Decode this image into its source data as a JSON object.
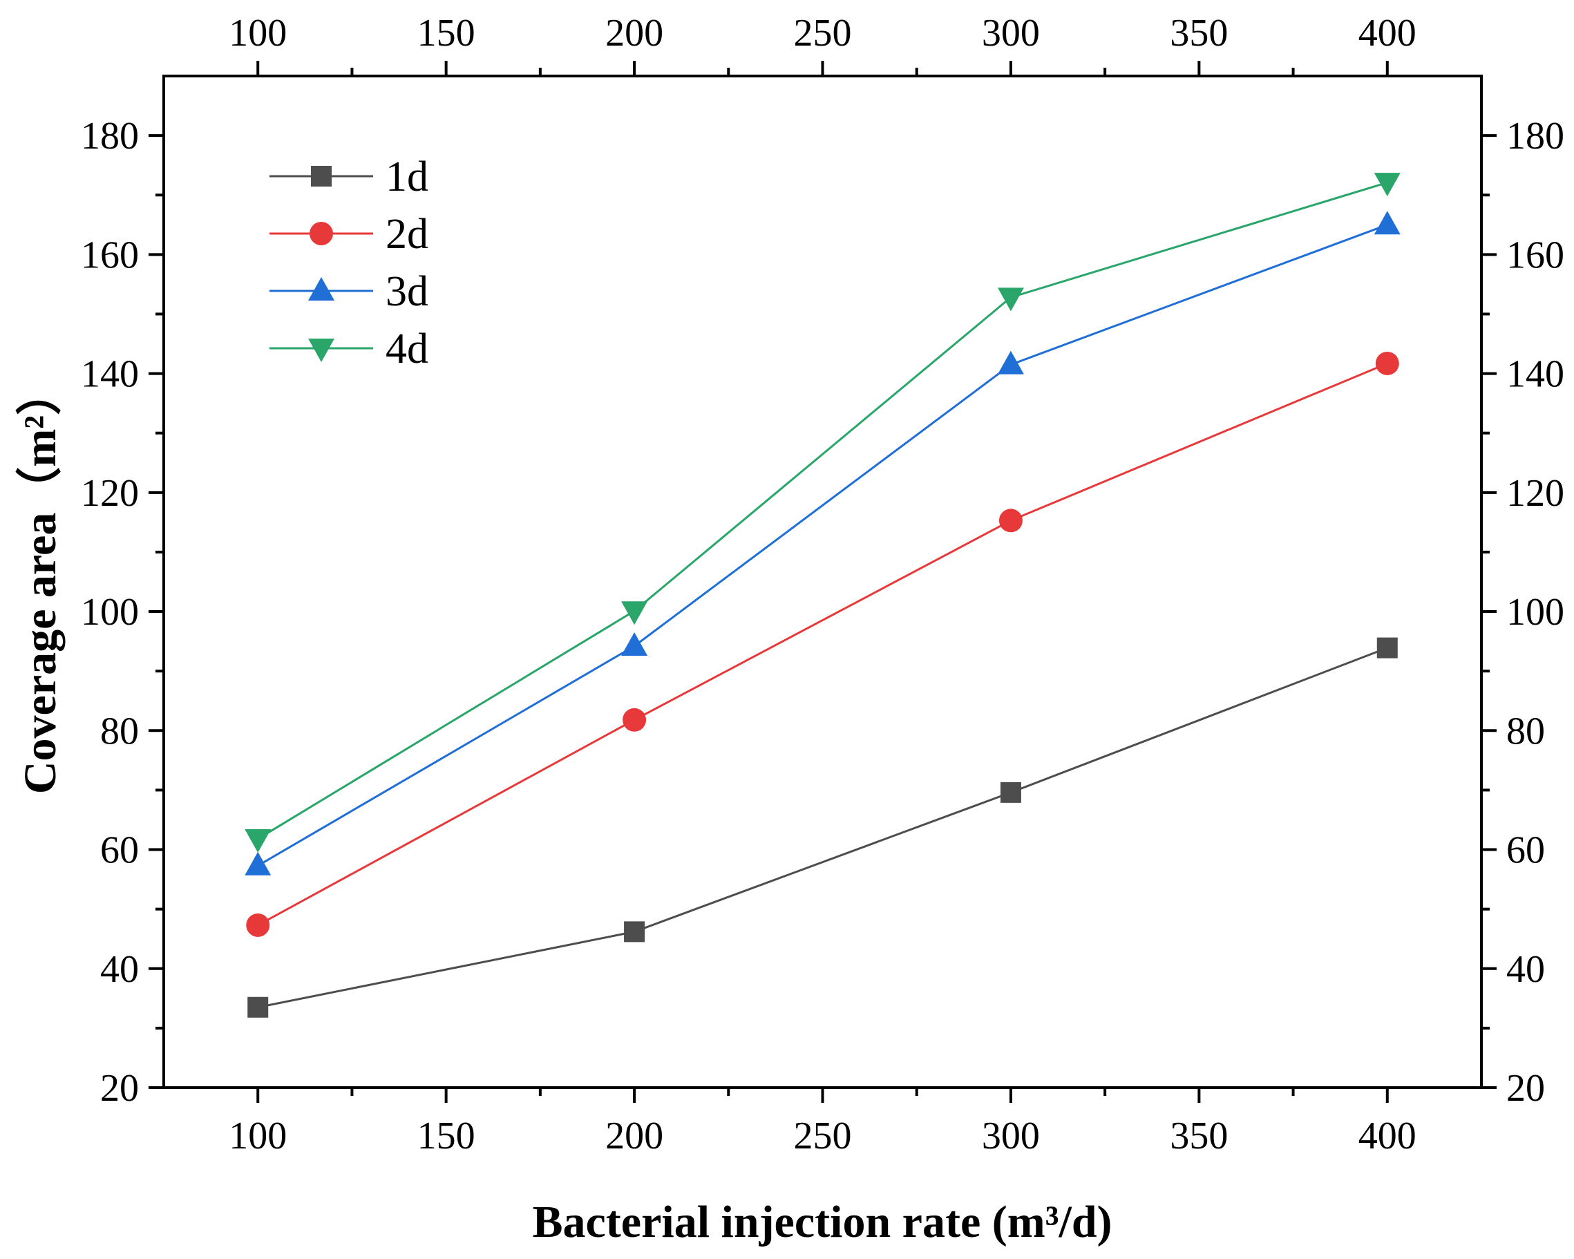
{
  "chart_data": {
    "type": "line",
    "xlabel": "Bacterial injection rate (m³/d)",
    "ylabel": "Coverage area（m²）",
    "xlim": [
      75,
      425
    ],
    "ylim": [
      20,
      190
    ],
    "x_ticks": [
      100,
      150,
      200,
      250,
      300,
      350,
      400
    ],
    "y_ticks": [
      20,
      40,
      60,
      80,
      100,
      120,
      140,
      160,
      180
    ],
    "grid": false,
    "mirror_axes": true,
    "legend_position": "top-left",
    "x": [
      100,
      200,
      300,
      400
    ],
    "series": [
      {
        "name": "1d",
        "values": [
          33.5,
          46.2,
          69.6,
          93.9
        ],
        "color": "#4d4d4d",
        "marker": "square"
      },
      {
        "name": "2d",
        "values": [
          47.3,
          81.8,
          115.3,
          141.7
        ],
        "color": "#e8393a",
        "marker": "circle"
      },
      {
        "name": "3d",
        "values": [
          57.3,
          94.2,
          141.5,
          165.0
        ],
        "color": "#1f6fd6",
        "marker": "triangle-up"
      },
      {
        "name": "4d",
        "values": [
          61.8,
          100.1,
          152.8,
          172.1
        ],
        "color": "#2aa66a",
        "marker": "triangle-down"
      }
    ]
  }
}
